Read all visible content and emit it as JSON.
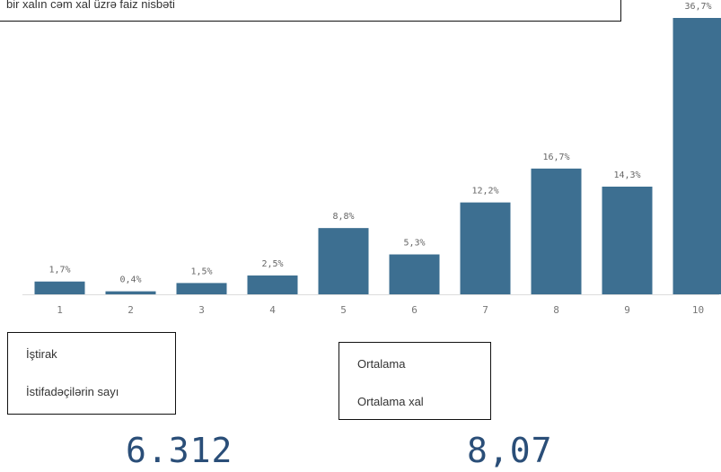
{
  "chart_data": {
    "type": "bar",
    "title": "bir xalın cəm xal üzrə faiz nisbəti",
    "categories": [
      "1",
      "2",
      "3",
      "4",
      "5",
      "6",
      "7",
      "8",
      "9",
      "10"
    ],
    "values": [
      1.7,
      0.4,
      1.5,
      2.5,
      8.8,
      5.3,
      12.2,
      16.7,
      14.3,
      36.7
    ],
    "value_labels": [
      "1,7%",
      "0,4%",
      "1,5%",
      "2,5%",
      "8,8%",
      "5,3%",
      "12,2%",
      "16,7%",
      "14,3%",
      "36,7%"
    ],
    "ylim": [
      0,
      36.7
    ],
    "grid": false,
    "bar_color": "#3d6f91",
    "axis_color": "#dddddd"
  },
  "kpis": [
    {
      "title": "İştirak",
      "subtitle": "İstifadəçilərin sayı",
      "value": "6.312"
    },
    {
      "title": "Ortalama",
      "subtitle": "Ortalama xal",
      "value": "8,07"
    }
  ],
  "colors": {
    "kpi_value": "#2a4e78"
  }
}
